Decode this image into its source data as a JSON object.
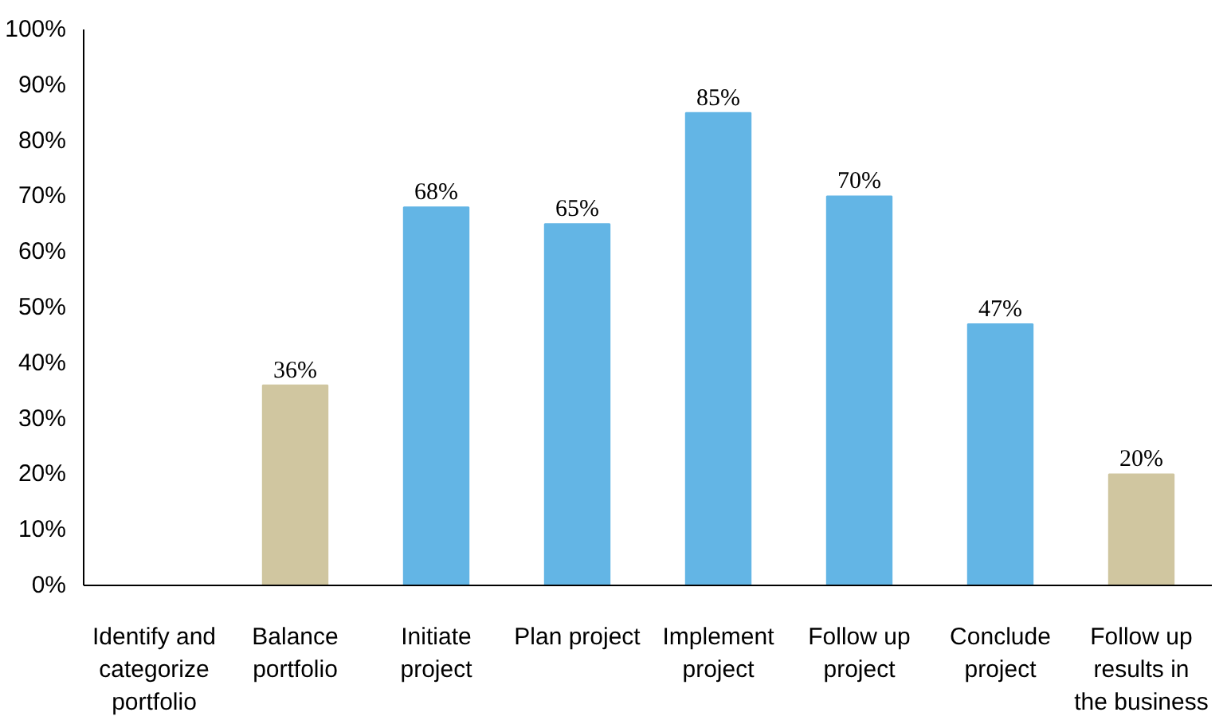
{
  "chart_data": {
    "type": "bar",
    "categories": [
      "Identify and categorize portfolio",
      "Balance portfolio",
      "Initiate project",
      "Plan project",
      "Implement project",
      "Follow up project",
      "Conclude project",
      "Follow up results in the business"
    ],
    "values": [
      null,
      36,
      68,
      65,
      85,
      70,
      47,
      20
    ],
    "colors": [
      "#d0c6a0",
      "#d0c6a0",
      "#63b5e5",
      "#63b5e5",
      "#63b5e5",
      "#63b5e5",
      "#63b5e5",
      "#d0c6a0"
    ],
    "value_labels": [
      null,
      "36%",
      "68%",
      "65%",
      "85%",
      "70%",
      "47%",
      "20%"
    ],
    "ylim": [
      0,
      100
    ],
    "yticks": [
      {
        "value": 0,
        "label": "0%"
      },
      {
        "value": 10,
        "label": "10%"
      },
      {
        "value": 20,
        "label": "20%"
      },
      {
        "value": 30,
        "label": "30%"
      },
      {
        "value": 40,
        "label": "40%"
      },
      {
        "value": 50,
        "label": "50%"
      },
      {
        "value": 60,
        "label": "60%"
      },
      {
        "value": 70,
        "label": "70%"
      },
      {
        "value": 80,
        "label": "80%"
      },
      {
        "value": 90,
        "label": "90%"
      },
      {
        "value": 100,
        "label": "100%"
      }
    ],
    "grid": false
  }
}
